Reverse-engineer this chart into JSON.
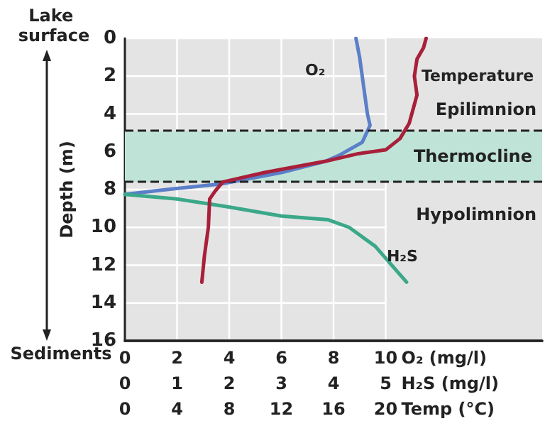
{
  "chart_data": [
    {
      "type": "line",
      "xlabel": "O₂ (mg/l)",
      "x2label": "H₂S (mg/l)",
      "ylabel": "Depth (m)",
      "xlim": [
        0,
        16
      ],
      "xticks": [
        0,
        2,
        4,
        6,
        8,
        10
      ],
      "x2lim": [
        0,
        8
      ],
      "x2ticks": [
        0,
        1,
        2,
        3,
        4,
        5
      ],
      "ylim": [
        16,
        0
      ],
      "yticks": [
        0,
        2,
        4,
        6,
        8,
        10,
        12,
        14,
        16
      ],
      "grid": true,
      "legend": false,
      "series": [
        {
          "name": "O₂",
          "color": "#5b7fc8",
          "x": [
            8.86,
            9.0,
            9.1,
            9.2,
            9.3,
            9.4,
            9.1,
            8.2,
            7.7,
            6.0,
            3.7,
            1.6,
            0
          ],
          "values": [
            0,
            1,
            2,
            3,
            4,
            4.6,
            5.5,
            6.2,
            6.5,
            7.1,
            7.7,
            8.0,
            8.25
          ]
        },
        {
          "name": "H₂S",
          "color": "#3aa889",
          "axis": "x2",
          "x": [
            0,
            1.0,
            1.95,
            3.0,
            3.9,
            4.3,
            4.8,
            5.4
          ],
          "values": [
            8.25,
            8.5,
            8.9,
            9.4,
            9.6,
            10,
            11,
            12.9
          ]
        }
      ],
      "ref_lines": [
        {
          "axis": "y",
          "value": 4.9,
          "line_style": "dashed",
          "color": "#222222"
        },
        {
          "axis": "y",
          "value": 7.6,
          "line_style": "dashed",
          "color": "#222222"
        }
      ],
      "bands": [
        {
          "axis": "y",
          "from": 4.9,
          "to": 7.6,
          "label": "Thermocline",
          "color": "#bfe4d7"
        }
      ],
      "annotations": [
        "Lake surface",
        "Sediments",
        "Epilimnion",
        "Hypolimnion"
      ]
    },
    {
      "type": "line",
      "xlabel": "Temp (°C)",
      "xlim": [
        0,
        32
      ],
      "xticks": [
        0,
        4,
        8,
        12,
        16,
        20
      ],
      "ylim": [
        16,
        0
      ],
      "tick_labels": "x",
      "series": [
        {
          "name": "Temperature",
          "color": "#a8203a",
          "x": [
            23.1,
            22.9,
            22.4,
            22.2,
            22.4,
            21.8,
            21.1,
            20.0,
            17.9,
            15.4,
            10.7,
            7.5,
            6.9,
            6.5,
            6.4,
            6.1,
            5.9
          ],
          "values": [
            0,
            0.5,
            1.1,
            2,
            3,
            4.5,
            5.3,
            5.9,
            6.1,
            6.5,
            7.1,
            7.6,
            8.1,
            8.5,
            10,
            11.5,
            12.9
          ]
        }
      ]
    }
  ]
}
